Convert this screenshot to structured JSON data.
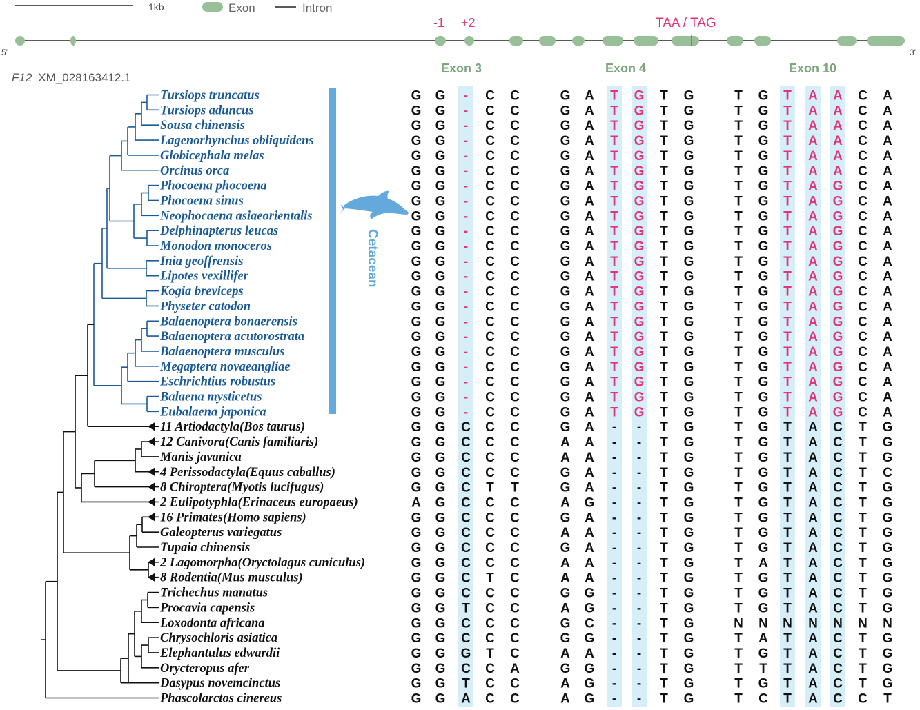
{
  "legend": {
    "scale_label": "1kb",
    "exon_label": "Exon",
    "intron_label": "Intron"
  },
  "gene": {
    "left_end": "5'",
    "right_end": "3'",
    "mark_minus1": "-1",
    "mark_plus2": "+2",
    "stop_label": "TAA / TAG"
  },
  "gene_title": {
    "name": "F12",
    "accession": "XM_028163412.1"
  },
  "exon_headers": [
    "Exon 3",
    "Exon 4",
    "Exon 10"
  ],
  "group_label": "Cetacean",
  "colors": {
    "cetacean": "#1a5a96",
    "exon_fill": "#98bf98",
    "highlight_bg": "#d5eef8",
    "mutation": "#e0357a",
    "bar": "#63a9dc",
    "header": "#7ea67e"
  },
  "species": [
    {
      "name": "Tursiops truncatus",
      "group": "cetacean",
      "collapsed": false
    },
    {
      "name": "Tursiops aduncus",
      "group": "cetacean",
      "collapsed": false
    },
    {
      "name": "Sousa chinensis",
      "group": "cetacean",
      "collapsed": false
    },
    {
      "name": "Lagenorhynchus obliquidens",
      "group": "cetacean",
      "collapsed": false
    },
    {
      "name": "Globicephala melas",
      "group": "cetacean",
      "collapsed": false
    },
    {
      "name": "Orcinus orca",
      "group": "cetacean",
      "collapsed": false
    },
    {
      "name": "Phocoena phocoena",
      "group": "cetacean",
      "collapsed": false
    },
    {
      "name": "Phocoena sinus",
      "group": "cetacean",
      "collapsed": false
    },
    {
      "name": "Neophocaena asiaeorientalis",
      "group": "cetacean",
      "collapsed": false
    },
    {
      "name": "Delphinapterus leucas",
      "group": "cetacean",
      "collapsed": false
    },
    {
      "name": "Monodon monoceros",
      "group": "cetacean",
      "collapsed": false
    },
    {
      "name": "Inia geoffrensis",
      "group": "cetacean",
      "collapsed": false
    },
    {
      "name": "Lipotes vexillifer",
      "group": "cetacean",
      "collapsed": false
    },
    {
      "name": "Kogia breviceps",
      "group": "cetacean",
      "collapsed": false
    },
    {
      "name": "Physeter catodon",
      "group": "cetacean",
      "collapsed": false
    },
    {
      "name": "Balaenoptera bonaerensis",
      "group": "cetacean",
      "collapsed": false
    },
    {
      "name": "Balaenoptera acutorostrata",
      "group": "cetacean",
      "collapsed": false
    },
    {
      "name": "Balaenoptera musculus",
      "group": "cetacean",
      "collapsed": false
    },
    {
      "name": "Megaptera novaeangliae",
      "group": "cetacean",
      "collapsed": false
    },
    {
      "name": "Eschrichtius robustus",
      "group": "cetacean",
      "collapsed": false
    },
    {
      "name": "Balaena mysticetus",
      "group": "cetacean",
      "collapsed": false
    },
    {
      "name": "Eubalaena japonica",
      "group": "cetacean",
      "collapsed": false
    },
    {
      "name": "11 Artiodactyla(Bos taurus)",
      "group": "other",
      "collapsed": true
    },
    {
      "name": "12 Canivora(Canis familiaris)",
      "group": "other",
      "collapsed": true
    },
    {
      "name": "Manis javanica",
      "group": "other",
      "collapsed": false
    },
    {
      "name": "4 Perissodactyla(Equus caballus)",
      "group": "other",
      "collapsed": true
    },
    {
      "name": "8 Chiroptera(Myotis lucifugus)",
      "group": "other",
      "collapsed": true
    },
    {
      "name": "2 Eulipotyphla(Erinaceus europaeus)",
      "group": "other",
      "collapsed": true
    },
    {
      "name": "16 Primates(Homo sapiens)",
      "group": "other",
      "collapsed": true
    },
    {
      "name": "Galeopterus variegatus",
      "group": "other",
      "collapsed": false
    },
    {
      "name": "Tupaia chinensis",
      "group": "other",
      "collapsed": false
    },
    {
      "name": "2 Lagomorpha(Oryctolagus cuniculus)",
      "group": "other",
      "collapsed": true
    },
    {
      "name": "8 Rodentia(Mus musculus)",
      "group": "other",
      "collapsed": true
    },
    {
      "name": "Trichechus manatus",
      "group": "other",
      "collapsed": false
    },
    {
      "name": "Procavia capensis",
      "group": "other",
      "collapsed": false
    },
    {
      "name": "Loxodonta africana",
      "group": "other",
      "collapsed": false
    },
    {
      "name": "Chrysochloris asiatica",
      "group": "other",
      "collapsed": false
    },
    {
      "name": "Elephantulus edwardii",
      "group": "other",
      "collapsed": false
    },
    {
      "name": "Orycteropus afer",
      "group": "other",
      "collapsed": false
    },
    {
      "name": "Dasypus novemcinctus",
      "group": "other",
      "collapsed": false
    },
    {
      "name": "Phascolarctos cinereus",
      "group": "other",
      "collapsed": false
    }
  ],
  "alignment": {
    "exon3": [
      "GG-CC",
      "GG-CC",
      "GG-CC",
      "GG-CC",
      "GG-CC",
      "GG-CC",
      "GG-CC",
      "GG-CC",
      "GG-CC",
      "GG-CC",
      "GG-CC",
      "GG-CC",
      "GG-CC",
      "GG-CC",
      "GG-CC",
      "GG-CC",
      "GG-CC",
      "GG-CC",
      "GG-CC",
      "GG-CC",
      "GG-CC",
      "GG-CC",
      "GGCCC",
      "GGCCC",
      "GGCCC",
      "GGCCC",
      "GGCTT",
      "AGCCC",
      "GGCCC",
      "GGCCC",
      "GGCCC",
      "GGCCC",
      "GGCTC",
      "GGCCC",
      "GGTCC",
      "GGCCC",
      "GGCCC",
      "GGGTC",
      "GGCCA",
      "GGTCC",
      "GGACC"
    ],
    "exon4": [
      "GATGTG",
      "GATGTG",
      "GATGTG",
      "GATGTG",
      "GATGTG",
      "GATGTG",
      "GATGTG",
      "GATGTG",
      "GATGTG",
      "GATGTG",
      "GATGTG",
      "GATGTG",
      "GATGTG",
      "GATGTG",
      "GATGTG",
      "GATGTG",
      "GATGTG",
      "GATGTG",
      "GATGTG",
      "GATGTG",
      "GATGTG",
      "GATGTG",
      "GA--TG",
      "AA--TG",
      "AA--TG",
      "GA--TG",
      "GA--TG",
      "AG--TG",
      "GA--TG",
      "AA--TG",
      "GA--TG",
      "AA--TG",
      "AA--TG",
      "GG--TG",
      "AG--TG",
      "GC--TG",
      "GG--TG",
      "AA--TG",
      "GG--TG",
      "AG--TG",
      "AG--TG"
    ],
    "exon10": [
      "TGTAACA",
      "TGTAACA",
      "TGTAACA",
      "TGTAACA",
      "TGTAACA",
      "TGTAACA",
      "TGTAGCA",
      "TGTAGCA",
      "TGTAGCA",
      "TGTAGCA",
      "TGTAGCA",
      "TGTAGCA",
      "TGTAGCA",
      "TGTAGCA",
      "TGTAGCA",
      "TGTAGCA",
      "TGTAGCA",
      "TGTAGCA",
      "TGTAGCA",
      "TGTAGCA",
      "TGTAGCA",
      "TGTAGCA",
      "TGTACTG",
      "TGTACTG",
      "TGTACTG",
      "TGTACTC",
      "TGTACTG",
      "TGTACTG",
      "TGTACTG",
      "TGTACTG",
      "TGTACTG",
      "TATACTG",
      "TGTACTG",
      "TGTACTG",
      "TGTACTG",
      "NNNNNNN",
      "TATACTG",
      "TGTACTG",
      "TTTACTG",
      "TGTACTG",
      "TCTACCT"
    ]
  },
  "mutation_columns": {
    "exon3": [
      2
    ],
    "exon4": [
      2,
      3
    ],
    "exon10": [
      2,
      3,
      4
    ]
  },
  "highlight_columns": {
    "exon3": [
      2
    ],
    "exon4": [
      2,
      3
    ],
    "exon10": [
      2,
      3,
      4
    ]
  }
}
